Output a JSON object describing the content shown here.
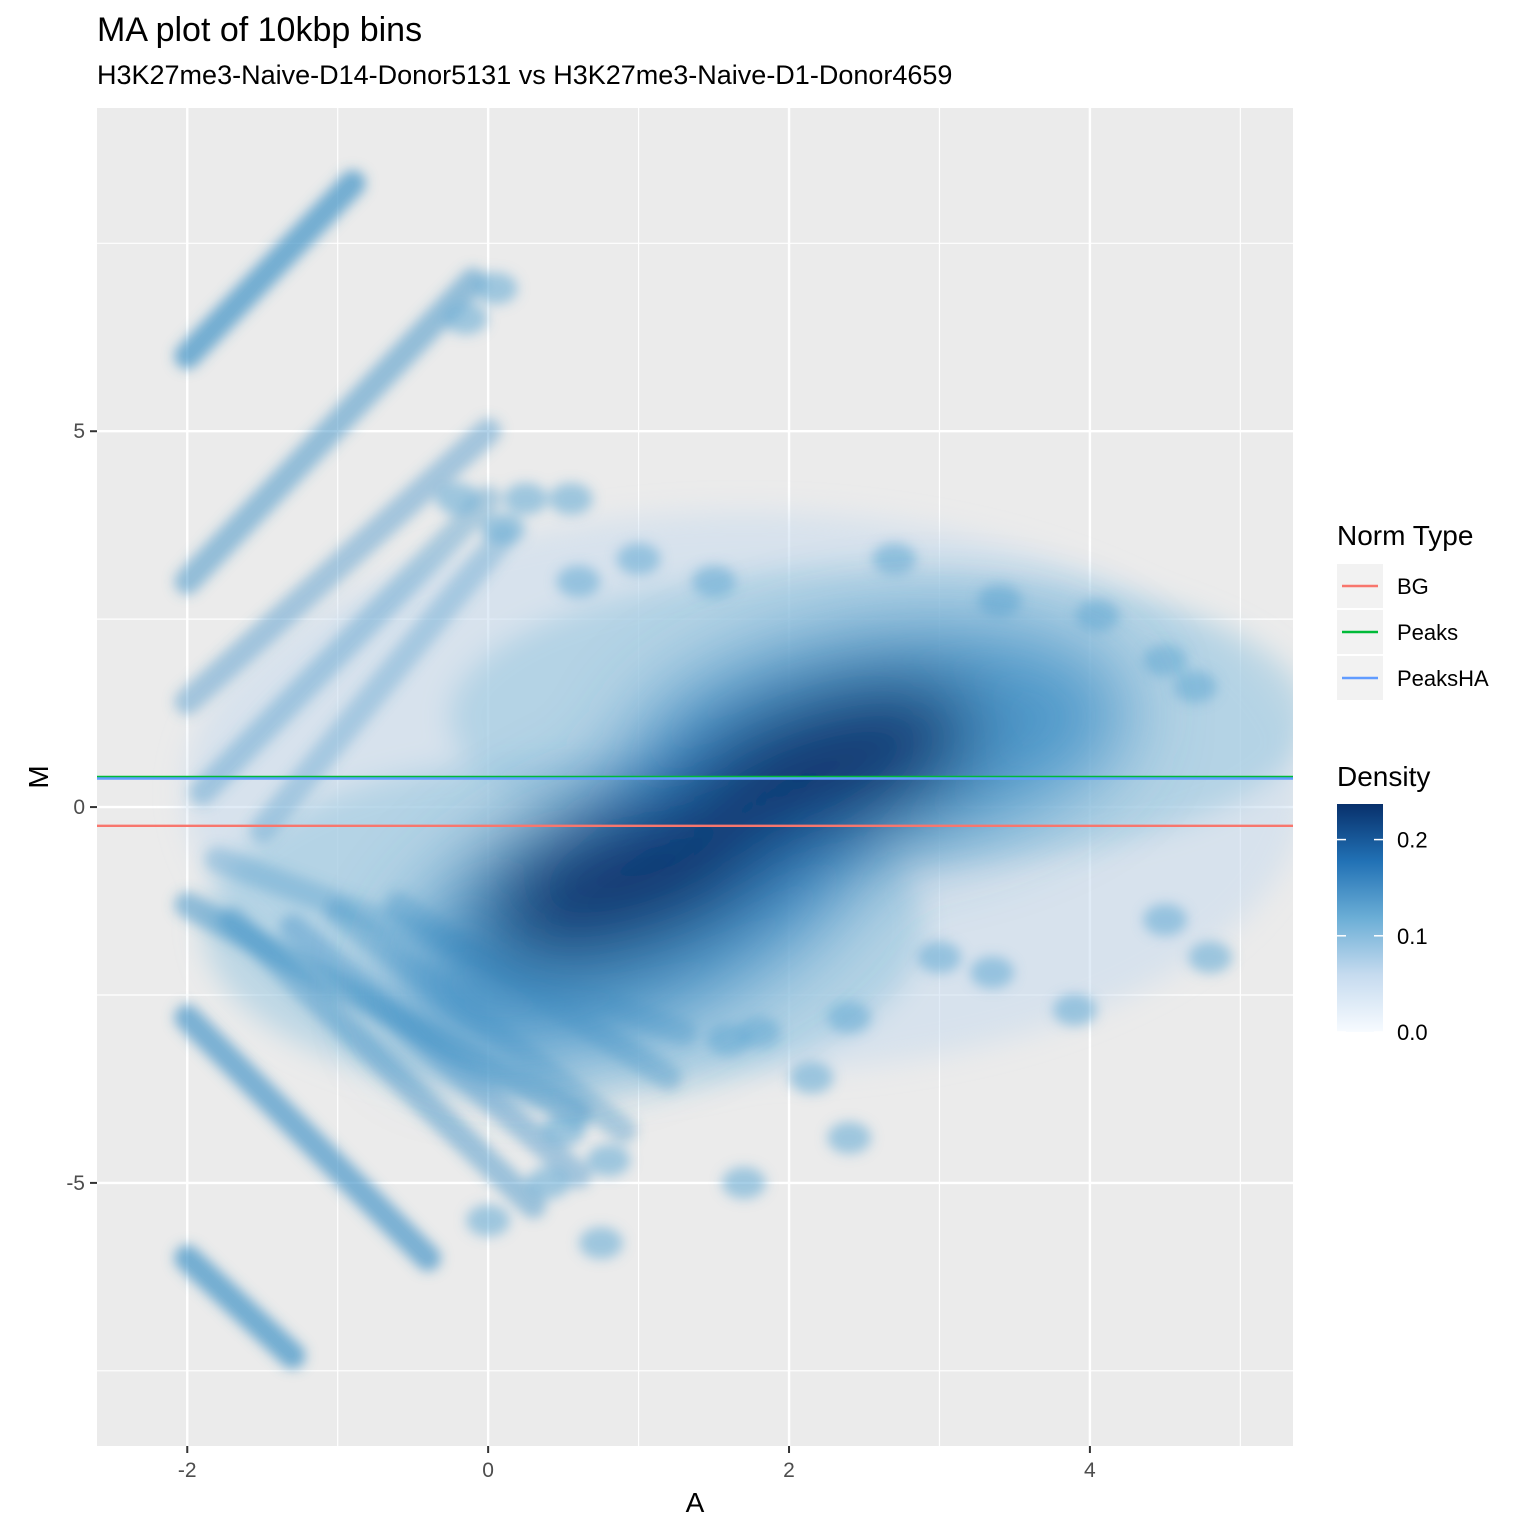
{
  "chart_data": {
    "type": "heatmap",
    "title": "MA plot of 10kbp bins",
    "subtitle": "H3K27me3-Naive-D14-Donor5131 vs H3K27me3-Naive-D1-Donor4659",
    "xlabel": "A",
    "ylabel": "M",
    "xlim": [
      -2.6,
      5.35
    ],
    "ylim": [
      -8.5,
      9.3
    ],
    "x_ticks": [
      -2,
      0,
      2,
      4
    ],
    "x_tick_labels": [
      "-2",
      "0",
      "2",
      "4"
    ],
    "y_ticks": [
      -5,
      0,
      5
    ],
    "y_tick_labels": [
      "-5",
      "0",
      "5"
    ],
    "grid": true,
    "density": {
      "name": "Density",
      "colorscale": [
        "#f7fbff",
        "#c6dbef",
        "#6baed6",
        "#2171b5",
        "#08306b"
      ],
      "legend_ticks": [
        0.0,
        0.1,
        0.2
      ],
      "legend_tick_labels": [
        "0.0",
        "0.1",
        "0.2"
      ],
      "peaks": [
        {
          "A": 2.3,
          "M": 0.6,
          "level": 0.23
        },
        {
          "A": 0.9,
          "M": -1.0,
          "level": 0.22
        }
      ]
    },
    "lines": {
      "name": "Norm Type",
      "series": [
        {
          "name": "BG",
          "M": -0.25,
          "color": "#F8766D"
        },
        {
          "name": "Peaks",
          "M": 0.4,
          "color": "#00BA38"
        },
        {
          "name": "PeaksHA",
          "M": 0.38,
          "color": "#619CFF"
        }
      ]
    },
    "legend_position": "right"
  }
}
